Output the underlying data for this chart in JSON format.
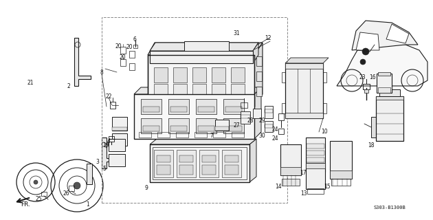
{
  "part_number": "S303-B1300B",
  "background": "#ffffff",
  "line_color": "#1a1a1a",
  "text_color": "#111111",
  "gray": "#888888",
  "dashed_color": "#777777"
}
